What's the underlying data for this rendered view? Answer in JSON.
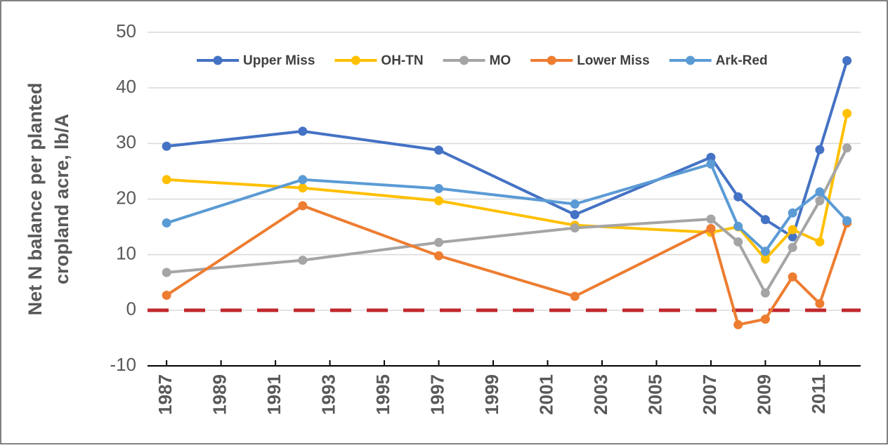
{
  "chart_data": {
    "type": "line",
    "y_label_lines": [
      "Net N balance per planted",
      "cropland acre, lb/A"
    ],
    "x": [
      1987,
      1992,
      1997,
      2002,
      2007,
      2008,
      2009,
      2010,
      2011,
      2012
    ],
    "series": [
      {
        "name": "Upper Miss",
        "color": "#4472c4",
        "values": [
          29.5,
          32.2,
          28.8,
          17.2,
          27.5,
          20.4,
          16.3,
          13.2,
          28.9,
          44.9
        ]
      },
      {
        "name": "OH-TN",
        "color": "#ffc000",
        "values": [
          23.5,
          22.0,
          19.7,
          15.3,
          14.0,
          15.0,
          9.2,
          14.5,
          12.3,
          35.4
        ]
      },
      {
        "name": "MO",
        "color": "#a5a5a5",
        "values": [
          6.8,
          9.0,
          12.2,
          14.8,
          16.4,
          12.3,
          3.1,
          11.3,
          19.7,
          29.2
        ]
      },
      {
        "name": "Lower Miss",
        "color": "#ed7d31",
        "values": [
          2.7,
          18.8,
          9.8,
          2.5,
          14.7,
          -2.6,
          -1.6,
          6.0,
          1.2,
          15.7
        ]
      },
      {
        "name": "Ark-Red",
        "color": "#5b9bd5",
        "values": [
          15.7,
          23.5,
          21.9,
          19.1,
          26.3,
          15.1,
          10.6,
          17.5,
          21.3,
          16.1
        ]
      }
    ],
    "xlim": [
      1986.3,
      2012.5
    ],
    "xticks": [
      1987,
      1989,
      1991,
      1993,
      1995,
      1997,
      1999,
      2001,
      2003,
      2005,
      2007,
      2009,
      2011
    ],
    "ylim": [
      -10,
      50
    ],
    "yticks": [
      -10,
      0,
      10,
      20,
      30,
      40,
      50
    ],
    "grid": true,
    "reference_line": {
      "value": 0,
      "color": "#c0282d"
    },
    "legend": "top"
  }
}
